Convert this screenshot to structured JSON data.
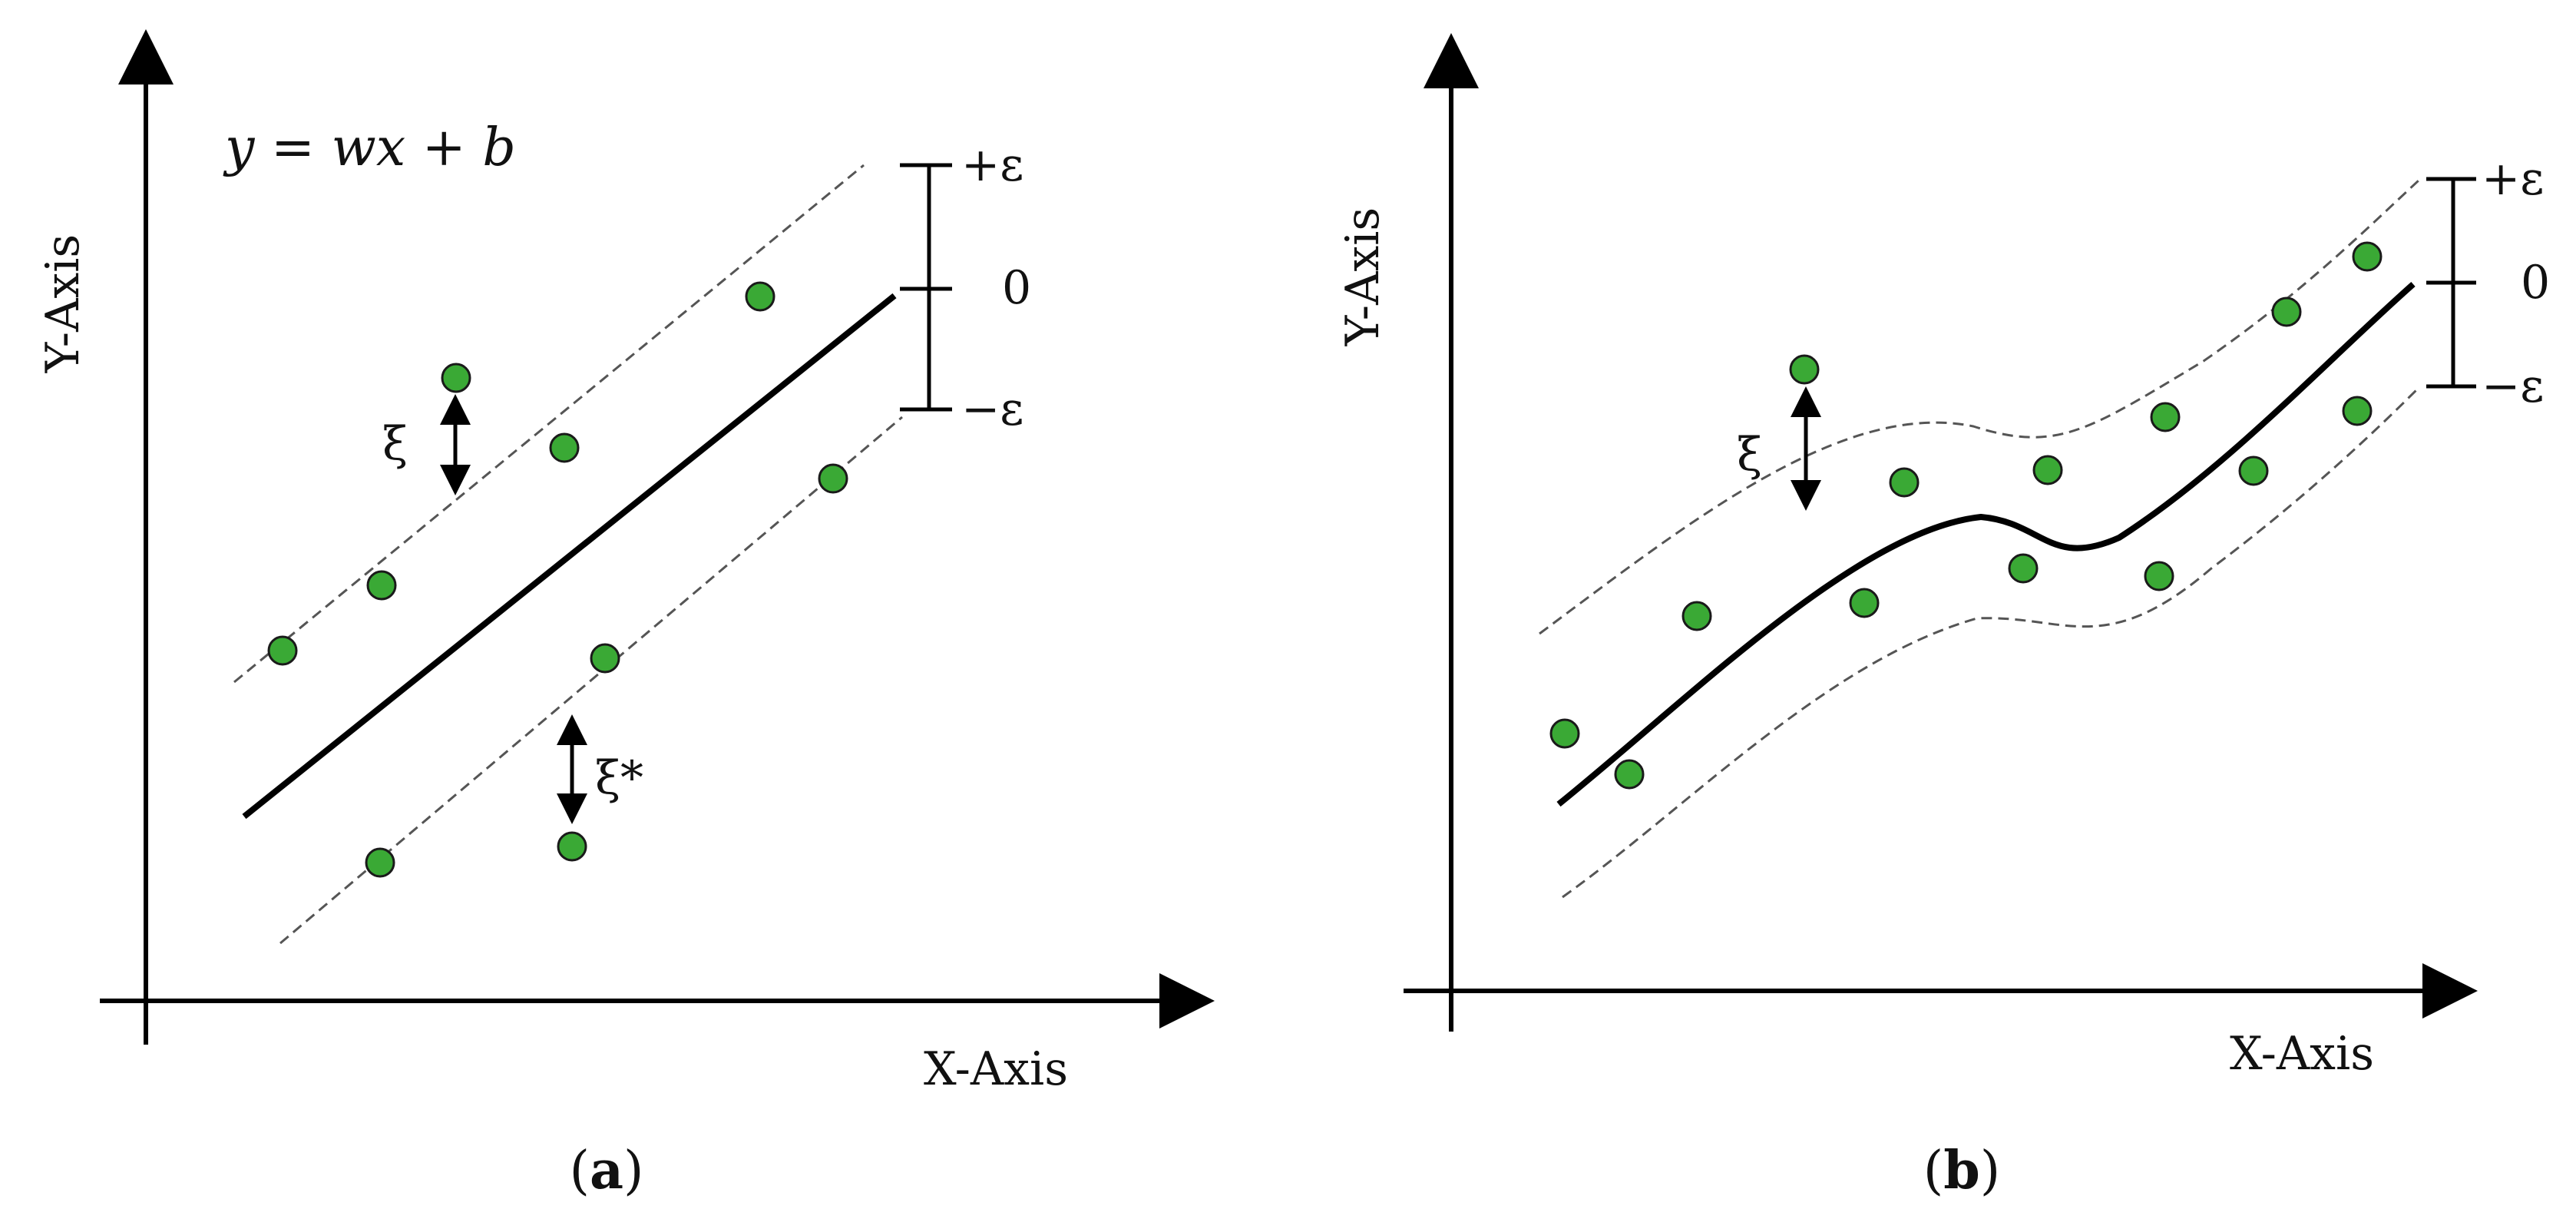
{
  "panel_a": {
    "caption_open": "(",
    "caption_letter": "a",
    "caption_close": ")",
    "x_axis_label": "X-Axis",
    "y_axis_label": "Y-Axis",
    "equation": "y = wx + b",
    "margin_labels": {
      "plus": "+ε",
      "zero": "0",
      "minus": "−ε"
    },
    "slack_upper": "ξ",
    "slack_lower": "ξ*",
    "point_color": "#3aa935"
  },
  "panel_b": {
    "caption_open": "(",
    "caption_letter": "b",
    "caption_close": ")",
    "x_axis_label": "X-Axis",
    "y_axis_label": "Y-Axis",
    "margin_labels": {
      "plus": "+ε",
      "zero": "0",
      "minus": "−ε"
    },
    "slack_upper": "ξ",
    "point_color": "#3aa935"
  },
  "colors": {
    "line": "#000000",
    "point_fill": "#3aa935",
    "point_stroke": "#1a1a1a",
    "dashed": "#555555"
  }
}
